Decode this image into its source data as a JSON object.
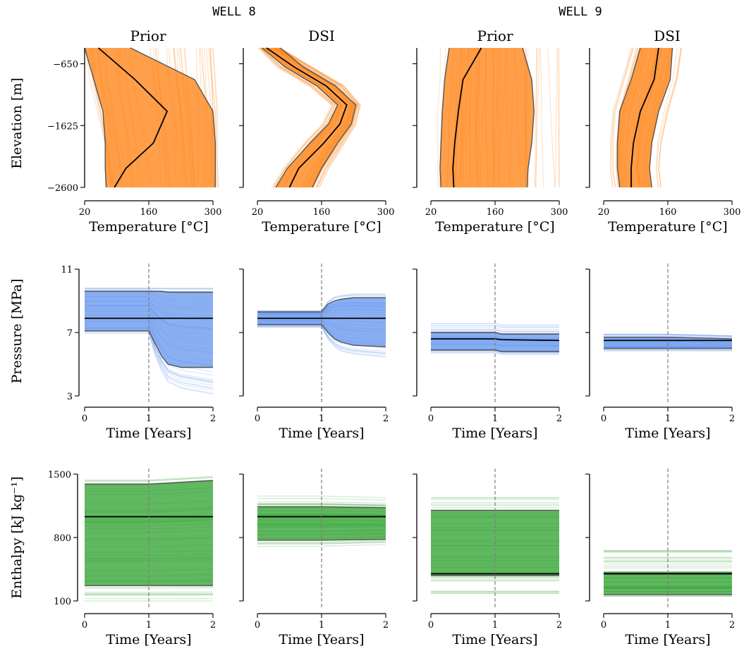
{
  "wells": [
    "WELL 8",
    "WELL 9"
  ],
  "panel_titles": [
    "Prior",
    "DSI",
    "Prior",
    "DSI"
  ],
  "colors": {
    "temperature": "#ff7f0e",
    "pressure": "#6495ed",
    "enthalpy": "#2ca02c",
    "median": "#000000",
    "percentile": "#555555",
    "event_line": "#7f7f7f"
  },
  "chart_data": [
    {
      "type": "line",
      "row": "temperature",
      "xlabel": "Temperature [°C]",
      "ylabel": "Elevation [m]",
      "xlim": [
        20,
        300
      ],
      "ylim": [
        -2600,
        -400
      ],
      "xticks": [
        20,
        160,
        300
      ],
      "yticks": [
        -650,
        -1625,
        -2600
      ],
      "panels": [
        {
          "well": "WELL 8",
          "title": "Prior",
          "y": [
            -400,
            -900,
            -1400,
            -1900,
            -2300,
            -2600
          ],
          "median": [
            50,
            130,
            200,
            170,
            110,
            85
          ],
          "p05": [
            20,
            40,
            60,
            65,
            65,
            67
          ],
          "p95": [
            120,
            260,
            300,
            305,
            305,
            305
          ],
          "band": [
            [
              20,
              300
            ],
            [
              25,
              305
            ],
            [
              40,
              310
            ],
            [
              55,
              310
            ],
            [
              65,
              310
            ],
            [
              70,
              312
            ]
          ]
        },
        {
          "well": "WELL 8",
          "title": "DSI",
          "y": [
            -400,
            -700,
            -1000,
            -1300,
            -1600,
            -1900,
            -2300,
            -2600
          ],
          "median": [
            40,
            100,
            170,
            215,
            200,
            165,
            110,
            90
          ],
          "p05": [
            30,
            80,
            150,
            195,
            175,
            135,
            85,
            60
          ],
          "p95": [
            70,
            120,
            190,
            235,
            225,
            195,
            160,
            140
          ],
          "band": [
            [
              20,
              70
            ],
            [
              60,
              140
            ],
            [
              130,
              210
            ],
            [
              180,
              245
            ],
            [
              160,
              235
            ],
            [
              120,
              210
            ],
            [
              75,
              175
            ],
            [
              50,
              155
            ]
          ]
        },
        {
          "well": "WELL 9",
          "title": "Prior",
          "y": [
            -400,
            -900,
            -1400,
            -1900,
            -2300,
            -2600
          ],
          "median": [
            130,
            90,
            80,
            72,
            68,
            70
          ],
          "p05": [
            60,
            50,
            45,
            42,
            40,
            42
          ],
          "p95": [
            220,
            240,
            245,
            240,
            232,
            230
          ],
          "band": [
            [
              40,
              300
            ],
            [
              40,
              300
            ],
            [
              35,
              300
            ],
            [
              35,
              300
            ],
            [
              35,
              300
            ],
            [
              35,
              300
            ]
          ]
        },
        {
          "well": "WELL 9",
          "title": "DSI",
          "y": [
            -400,
            -900,
            -1400,
            -1900,
            -2300,
            -2600
          ],
          "median": [
            140,
            130,
            100,
            85,
            80,
            80
          ],
          "p05": [
            100,
            80,
            55,
            50,
            50,
            55
          ],
          "p95": [
            170,
            165,
            140,
            125,
            120,
            125
          ],
          "band": [
            [
              80,
              190
            ],
            [
              60,
              180
            ],
            [
              40,
              160
            ],
            [
              35,
              145
            ],
            [
              35,
              140
            ],
            [
              40,
              145
            ]
          ]
        }
      ]
    },
    {
      "type": "line",
      "row": "pressure",
      "xlabel": "Time [Years]",
      "ylabel": "Pressure [MPa]",
      "xlim": [
        0,
        2
      ],
      "ylim": [
        3,
        11
      ],
      "xticks": [
        0,
        1,
        2
      ],
      "yticks": [
        3,
        7,
        11
      ],
      "event_x": 1,
      "panels": [
        {
          "well": "WELL 8",
          "title": "Prior",
          "x": [
            0,
            1,
            1.1,
            1.2,
            1.3,
            1.5,
            2
          ],
          "median": [
            7.9,
            7.9,
            7.9,
            7.9,
            7.9,
            7.9,
            7.9
          ],
          "p05": [
            7.1,
            7.1,
            6.3,
            5.5,
            5.0,
            4.8,
            4.8
          ],
          "p95": [
            9.6,
            9.6,
            9.6,
            9.6,
            9.55,
            9.55,
            9.55
          ],
          "band_lo": [
            6.9,
            6.9,
            5.5,
            4.5,
            3.8,
            3.4,
            3.0
          ],
          "band_hi": [
            9.8,
            9.8,
            9.8,
            9.8,
            9.8,
            9.8,
            9.8
          ]
        },
        {
          "well": "WELL 8",
          "title": "DSI",
          "x": [
            0,
            1,
            1.1,
            1.2,
            1.3,
            1.5,
            2
          ],
          "median": [
            7.9,
            7.9,
            7.9,
            7.9,
            7.9,
            7.9,
            7.9
          ],
          "p05": [
            7.5,
            7.5,
            7.0,
            6.6,
            6.4,
            6.2,
            6.1
          ],
          "p95": [
            8.3,
            8.3,
            8.8,
            9.0,
            9.1,
            9.2,
            9.2
          ],
          "band_lo": [
            7.3,
            7.3,
            6.5,
            6.0,
            5.7,
            5.5,
            5.3
          ],
          "band_hi": [
            8.4,
            8.4,
            9.0,
            9.3,
            9.4,
            9.5,
            9.5
          ]
        },
        {
          "well": "WELL 9",
          "title": "Prior",
          "x": [
            0,
            1,
            1.1,
            2
          ],
          "median": [
            6.6,
            6.6,
            6.55,
            6.5
          ],
          "p05": [
            5.9,
            5.9,
            5.8,
            5.8
          ],
          "p95": [
            7.0,
            7.0,
            6.9,
            6.9
          ],
          "band_lo": [
            5.7,
            5.7,
            5.6,
            5.6
          ],
          "band_hi": [
            7.6,
            7.6,
            7.5,
            7.5
          ]
        },
        {
          "well": "WELL 9",
          "title": "DSI",
          "x": [
            0,
            1,
            2
          ],
          "median": [
            6.5,
            6.5,
            6.5
          ],
          "p05": [
            6.0,
            6.0,
            6.0
          ],
          "p95": [
            6.7,
            6.7,
            6.6
          ],
          "band_lo": [
            5.8,
            5.8,
            5.8
          ],
          "band_hi": [
            6.9,
            6.9,
            6.8
          ]
        }
      ]
    },
    {
      "type": "line",
      "row": "enthalpy",
      "xlabel": "Time [Years]",
      "ylabel": "Enthalpy [kJ kg⁻¹]",
      "xlim": [
        0,
        2
      ],
      "ylim": [
        100,
        1500
      ],
      "xticks": [
        0,
        1,
        2
      ],
      "yticks": [
        100,
        800,
        1500
      ],
      "event_x": 1,
      "panels": [
        {
          "well": "WELL 8",
          "title": "Prior",
          "x": [
            0,
            1,
            2
          ],
          "median": [
            1030,
            1030,
            1030
          ],
          "p05": [
            270,
            270,
            270
          ],
          "p95": [
            1390,
            1390,
            1430
          ],
          "band_lo": [
            100,
            100,
            100
          ],
          "band_hi": [
            1460,
            1460,
            1500
          ]
        },
        {
          "well": "WELL 8",
          "title": "DSI",
          "x": [
            0,
            1,
            2
          ],
          "median": [
            1030,
            1030,
            1030
          ],
          "p05": [
            770,
            770,
            780
          ],
          "p95": [
            1140,
            1140,
            1130
          ],
          "band_lo": [
            700,
            700,
            720
          ],
          "band_hi": [
            1260,
            1260,
            1240
          ]
        },
        {
          "well": "WELL 9",
          "title": "Prior",
          "x": [
            0,
            1,
            2
          ],
          "median": [
            400,
            400,
            400
          ],
          "p05": [
            380,
            380,
            380
          ],
          "p95": [
            1100,
            1100,
            1100
          ],
          "band_lo": [
            150,
            150,
            150
          ],
          "band_hi": [
            1250,
            1250,
            1250
          ]
        },
        {
          "well": "WELL 9",
          "title": "DSI",
          "x": [
            0,
            1,
            2
          ],
          "median": [
            400,
            400,
            400
          ],
          "p05": [
            170,
            170,
            170
          ],
          "p95": [
            410,
            410,
            410
          ],
          "band_lo": [
            130,
            130,
            130
          ],
          "band_hi": [
            660,
            660,
            660
          ]
        }
      ]
    }
  ]
}
